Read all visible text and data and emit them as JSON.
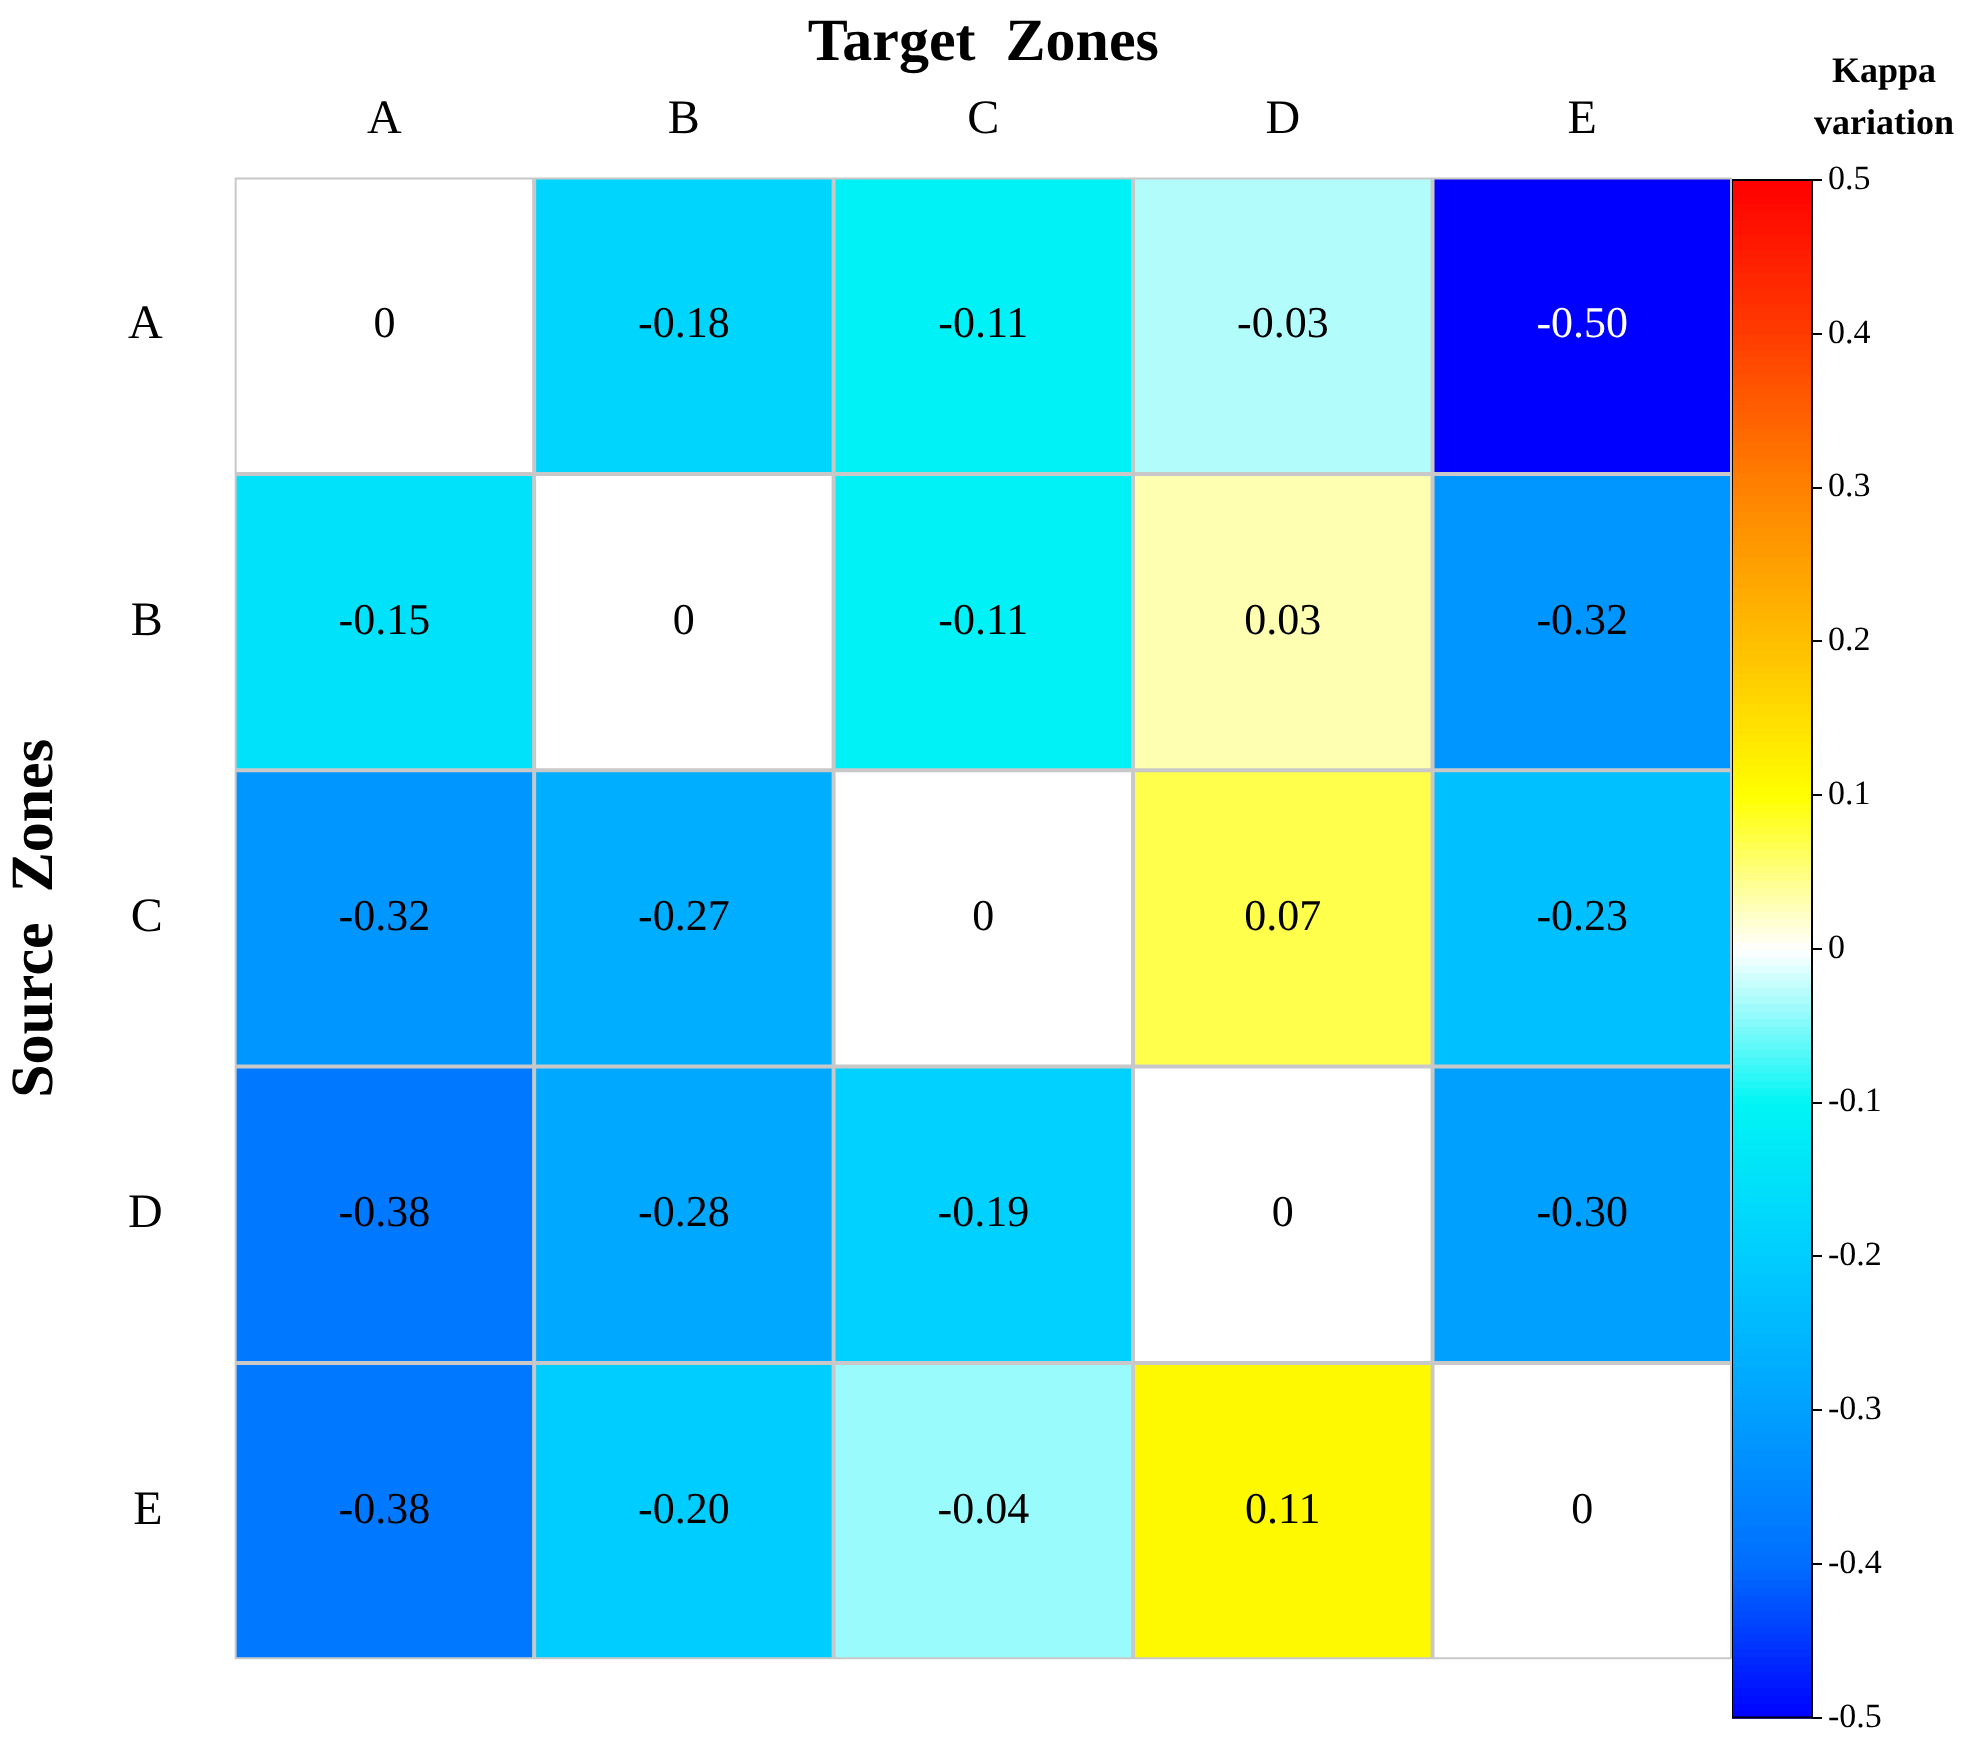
{
  "chart_data": {
    "type": "heatmap",
    "xlabel": "Target  Zones",
    "ylabel": "Source  Zones",
    "clabel": "Kappa variation",
    "categories": [
      "A",
      "B",
      "C",
      "D",
      "E"
    ],
    "y_categories": [
      "A",
      "B",
      "C",
      "D",
      "E"
    ],
    "cells": [
      [
        0,
        -0.18,
        -0.11,
        -0.03,
        -0.5
      ],
      [
        -0.15,
        0,
        -0.11,
        0.03,
        -0.32
      ],
      [
        -0.32,
        -0.27,
        0,
        0.07,
        -0.23
      ],
      [
        -0.38,
        -0.28,
        -0.19,
        0,
        -0.3
      ],
      [
        -0.38,
        -0.2,
        -0.04,
        0.11,
        0
      ]
    ],
    "cell_labels": [
      [
        "0",
        "-0.18",
        "-0.11",
        "-0.03",
        "-0.50"
      ],
      [
        "-0.15",
        "0",
        "-0.11",
        "0.03",
        "-0.32"
      ],
      [
        "-0.32",
        "-0.27",
        "0",
        "0.07",
        "-0.23"
      ],
      [
        "-0.38",
        "-0.28",
        "-0.19",
        "0",
        "-0.30"
      ],
      [
        "-0.38",
        "-0.20",
        "-0.04",
        "0.11",
        "0"
      ]
    ],
    "clim": [
      -0.5,
      0.5
    ],
    "cticks": [
      -0.5,
      -0.4,
      -0.3,
      -0.2,
      -0.1,
      0,
      0.1,
      0.2,
      0.3,
      0.4,
      0.5
    ]
  }
}
